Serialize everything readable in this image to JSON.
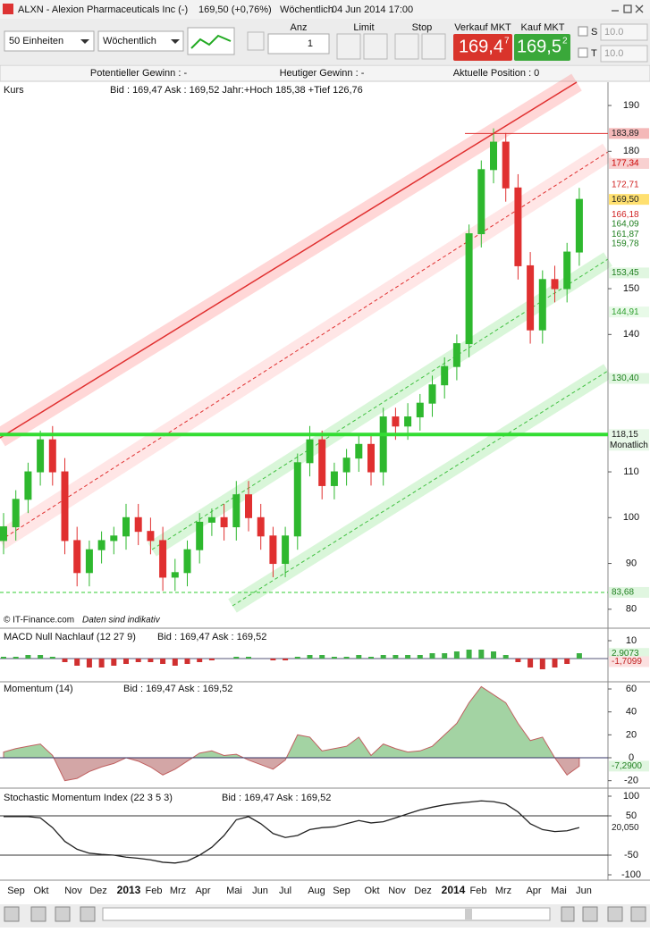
{
  "window": {
    "title": "ALXN - Alexion Pharmaceuticals Inc (-)",
    "price": "169,50 (+0,76%)",
    "period": "Wöchentlich",
    "datetime": "04 Jun 2014 17:00"
  },
  "toolbar": {
    "units": "50 Einheiten",
    "interval": "Wöchentlich",
    "anz_label": "Anz",
    "anz_value": "1",
    "limit": "Limit",
    "stop": "Stop",
    "sell_label": "Verkauf MKT",
    "sell_big": "169,4",
    "sell_small": "7",
    "buy_label": "Kauf MKT",
    "buy_big": "169,5",
    "buy_small": "2",
    "s": "S",
    "t": "T",
    "s_value": "10.0",
    "t_value": "10.0"
  },
  "status": {
    "potential": "Potentieller Gewinn : -",
    "today": "Heutiger Gewinn : -",
    "position": "Aktuelle Position : 0"
  },
  "chart_data": [
    {
      "type": "candlestick",
      "title": "Kurs",
      "subtitle": "Bid : 169,47 Ask : 169,52 Jahr:+Hoch 185,38 +Tief 126,76",
      "footer": "© IT-Finance.com",
      "note": "Daten sind indikativ",
      "open": [
        95,
        98,
        104,
        110,
        117,
        110,
        95,
        88,
        93,
        95,
        96,
        100,
        97,
        95,
        87,
        88,
        93,
        99,
        100,
        98,
        105,
        100,
        96,
        90,
        96,
        112,
        117,
        107,
        110,
        113,
        116,
        110,
        122,
        120,
        122,
        125,
        129,
        133,
        138,
        162,
        176,
        182,
        172,
        155,
        141,
        152,
        150,
        158
      ],
      "high": [
        101,
        106,
        112,
        119,
        120,
        113,
        98,
        95,
        97,
        98,
        103,
        103,
        100,
        98,
        91,
        95,
        101,
        102,
        103,
        108,
        108,
        103,
        98,
        98,
        114,
        120,
        119,
        112,
        115,
        118,
        118,
        124,
        124,
        125,
        127,
        131,
        135,
        140,
        164,
        178,
        185,
        184,
        175,
        158,
        154,
        155,
        160,
        172
      ],
      "low": [
        92,
        95,
        101,
        107,
        107,
        92,
        85,
        85,
        90,
        92,
        93,
        94,
        92,
        84,
        84,
        85,
        90,
        96,
        95,
        95,
        97,
        93,
        87,
        87,
        93,
        109,
        104,
        104,
        107,
        110,
        107,
        107,
        117,
        117,
        119,
        122,
        126,
        130,
        135,
        159,
        173,
        169,
        152,
        138,
        138,
        147,
        147,
        155
      ],
      "close": [
        98,
        104,
        110,
        117,
        110,
        95,
        88,
        93,
        95,
        96,
        100,
        97,
        95,
        87,
        88,
        93,
        99,
        100,
        98,
        105,
        100,
        96,
        90,
        96,
        112,
        117,
        107,
        110,
        113,
        116,
        110,
        122,
        120,
        122,
        125,
        129,
        133,
        138,
        162,
        176,
        182,
        172,
        155,
        141,
        152,
        150,
        158,
        169.5
      ],
      "up_color": "#2eb82e",
      "down_color": "#e03030",
      "ylim": [
        78.4,
        194.5
      ],
      "yticks": [
        80,
        90,
        100,
        110,
        140,
        150,
        180,
        190
      ],
      "x_labels": [
        "Sep",
        "Okt",
        "Nov",
        "Dez",
        "2013",
        "Feb",
        "Mrz",
        "Apr",
        "Mai",
        "Jun",
        "Jul",
        "Aug",
        "Sep",
        "Okt",
        "Nov",
        "Dez",
        "2014",
        "Feb",
        "Mrz",
        "Apr",
        "Mai",
        "Jun"
      ],
      "levels": [
        {
          "value": 183.89,
          "label": "183,89",
          "color": "#222",
          "bg": "#f4b8b8",
          "line": "solid"
        },
        {
          "value": 177.34,
          "label": "177,34",
          "color": "#c00",
          "bg": "#f8d0d0",
          "line": "none"
        },
        {
          "value": 172.71,
          "label": "172,71",
          "color": "#d02020",
          "bg": "#ffffff",
          "line": "none"
        },
        {
          "value": 169.5,
          "label": "169,50",
          "color": "#222",
          "bg": "#ffe070",
          "line": "none"
        },
        {
          "value": 166.18,
          "label": "166,18",
          "color": "#d02020",
          "bg": "#ffffff",
          "line": "none"
        },
        {
          "value": 164.09,
          "label": "164,09",
          "color": "#208020",
          "bg": "#ffffff",
          "line": "none"
        },
        {
          "value": 161.87,
          "label": "161,87",
          "color": "#208020",
          "bg": "#ffffff",
          "line": "none"
        },
        {
          "value": 159.78,
          "label": "159,78",
          "color": "#208020",
          "bg": "#ffffff",
          "line": "none"
        },
        {
          "value": 153.45,
          "label": "153,45",
          "color": "#208020",
          "bg": "#e0f6e0",
          "line": "none"
        },
        {
          "value": 144.91,
          "label": "144,91",
          "color": "#30a030",
          "bg": "#e8fae8",
          "line": "none"
        },
        {
          "value": 130.4,
          "label": "130,40",
          "color": "#208020",
          "bg": "#e0f6e0",
          "line": "none"
        },
        {
          "value": 118.15,
          "label": "118,15",
          "note": "Monatlich",
          "color": "#222",
          "bg": "#e8f8e8",
          "line": "thick"
        },
        {
          "value": 83.68,
          "label": "83,68",
          "color": "#208020",
          "bg": "#e0f6e0",
          "line": "dashed"
        }
      ]
    },
    {
      "type": "bar",
      "title": "MACD Null Nachlauf (12 27 9)",
      "subtitle": "Bid : 169,47 Ask : 169,52",
      "values": [
        1,
        1,
        2,
        2,
        1,
        -2,
        -4,
        -5,
        -5,
        -4,
        -3,
        -2,
        -2,
        -3,
        -4,
        -3,
        -2,
        -1,
        0,
        1,
        1,
        0,
        -1,
        -1,
        1,
        2,
        2,
        1,
        1,
        2,
        1,
        2,
        2,
        2,
        2,
        3,
        3,
        4,
        5,
        5,
        4,
        2,
        -2,
        -5,
        -6,
        -5,
        -3,
        3
      ],
      "color": "#3cb043",
      "negative_color": "#d03030",
      "ylim": [
        -12.5,
        15.5
      ],
      "yticks": [
        10
      ],
      "levels": [
        {
          "value": 2.9073,
          "label": "2,9073",
          "color": "#208020",
          "bg": "#e0f6e0",
          "line": "none"
        },
        {
          "value": -1.7099,
          "label": "-1,7099",
          "color": "#c02020",
          "bg": "#fbe0e0",
          "line": "none"
        }
      ]
    },
    {
      "type": "area",
      "title": "Momentum (14)",
      "subtitle": "Bid : 169,47 Ask : 169,52",
      "values": [
        5,
        8,
        10,
        12,
        2,
        -20,
        -18,
        -12,
        -8,
        -5,
        0,
        -3,
        -8,
        -15,
        -10,
        -3,
        4,
        6,
        2,
        3,
        -2,
        -6,
        -10,
        -2,
        20,
        18,
        6,
        8,
        10,
        18,
        2,
        12,
        8,
        5,
        6,
        10,
        20,
        30,
        48,
        62,
        55,
        48,
        30,
        15,
        18,
        0,
        -15,
        -7.29
      ],
      "color": "#8cc88c",
      "negative_color": "#c89090",
      "ylim": [
        -26.5,
        64.7
      ],
      "yticks": [
        -20,
        0,
        20,
        40,
        60
      ],
      "levels": [
        {
          "value": -7.29,
          "label": "-7,2900",
          "color": "#208020",
          "bg": "#e0f6e0",
          "line": "none"
        }
      ]
    },
    {
      "type": "line",
      "title": "Stochastic Momentum Index (22 3 5 3)",
      "subtitle": "Bid : 169,47 Ask : 169,52",
      "values": [
        48,
        48,
        48,
        45,
        20,
        -15,
        -35,
        -45,
        -48,
        -50,
        -55,
        -58,
        -62,
        -68,
        -70,
        -65,
        -50,
        -30,
        0,
        40,
        48,
        30,
        5,
        -5,
        0,
        15,
        20,
        22,
        30,
        38,
        32,
        35,
        45,
        55,
        65,
        72,
        78,
        82,
        85,
        88,
        86,
        80,
        60,
        30,
        15,
        10,
        12,
        20.05
      ],
      "color": "#222",
      "ylim": [
        -113.6,
        115.9
      ],
      "yticks": [
        -100,
        -50,
        50,
        100
      ],
      "levels": [
        {
          "value": 20.05,
          "label": "20,050",
          "color": "#222",
          "bg": "#ffffff",
          "line": "none"
        }
      ]
    }
  ]
}
